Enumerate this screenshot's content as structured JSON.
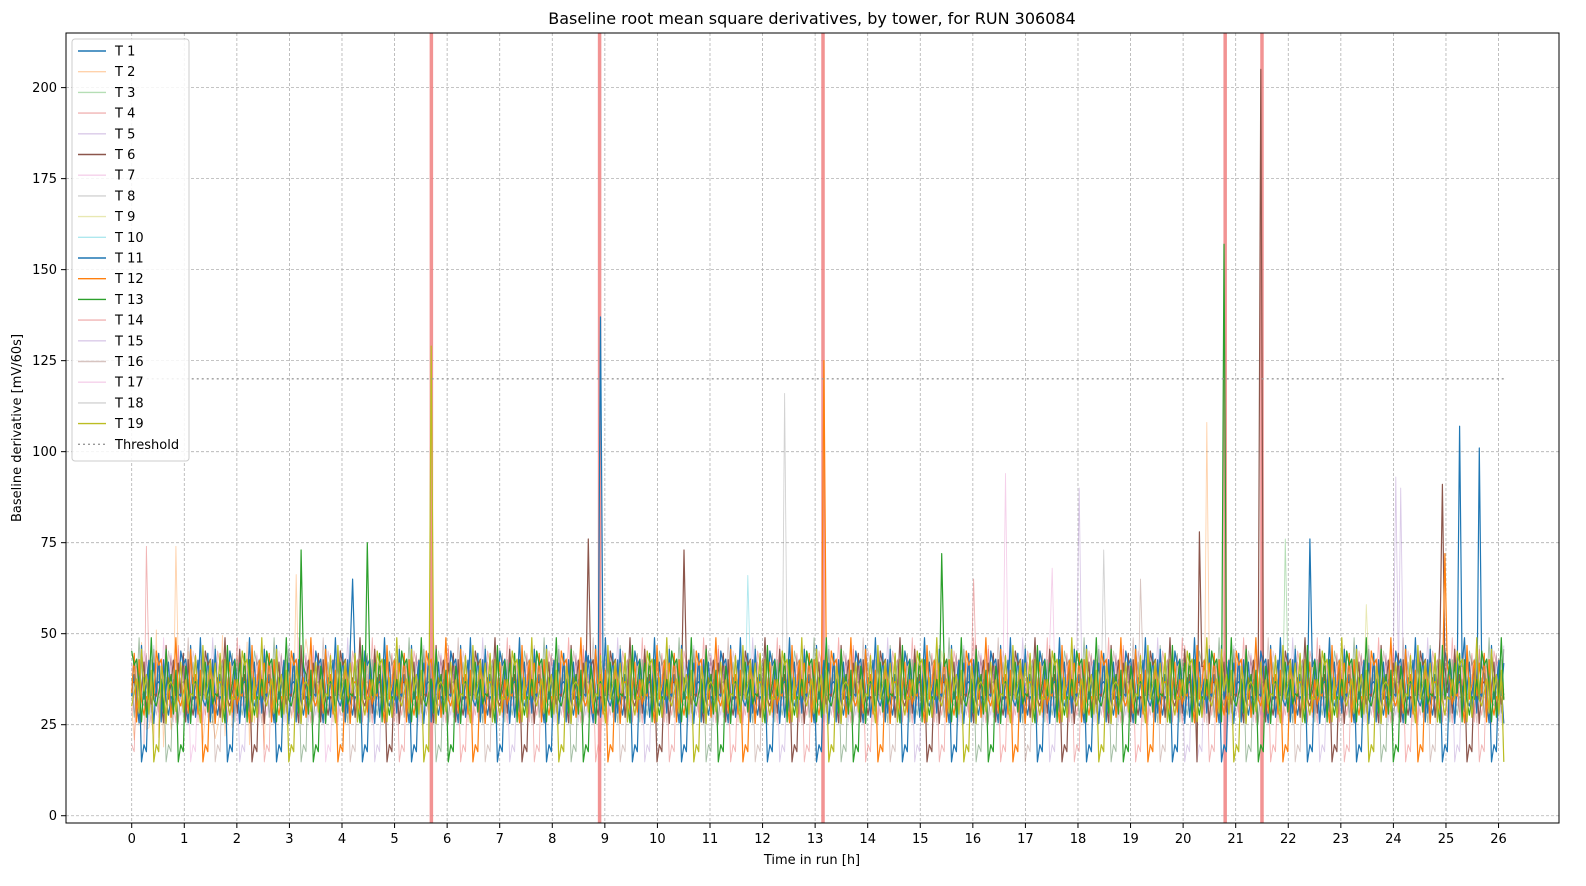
{
  "chart_data": {
    "type": "line",
    "title": "Baseline root mean square derivatives, by tower, for RUN 306084",
    "xlabel": "Time in run [h]",
    "ylabel": "Baseline derivative [mV/60s]",
    "xlim": [
      -1.25,
      27.15
    ],
    "ylim": [
      -2,
      215
    ],
    "x_ticks": [
      0,
      1,
      2,
      3,
      4,
      5,
      6,
      7,
      8,
      9,
      10,
      11,
      12,
      13,
      14,
      15,
      16,
      17,
      18,
      19,
      20,
      21,
      22,
      23,
      24,
      25,
      26
    ],
    "y_ticks": [
      0,
      25,
      50,
      75,
      100,
      125,
      150,
      175,
      200
    ],
    "grid": true,
    "legend_position": "top-left",
    "noise_band": {
      "x_start": 0,
      "x_end": 26.1,
      "y_low": 15,
      "y_high": 55
    },
    "series": [
      {
        "name": "T 1",
        "color": "#1f77b4",
        "alpha": 1.0,
        "spikes": [
          [
            8.9,
            137
          ],
          [
            25.25,
            107
          ],
          [
            25.62,
            101
          ],
          [
            22.4,
            76
          ]
        ]
      },
      {
        "name": "T 2",
        "color": "#ff7f0e",
        "alpha": 0.35,
        "spikes": [
          [
            20.45,
            108
          ],
          [
            0.85,
            74
          ]
        ]
      },
      {
        "name": "T 3",
        "color": "#2ca02c",
        "alpha": 0.35,
        "spikes": [
          [
            21.95,
            76
          ]
        ]
      },
      {
        "name": "T 4",
        "color": "#d62728",
        "alpha": 0.35,
        "spikes": [
          [
            0.3,
            74
          ]
        ]
      },
      {
        "name": "T 5",
        "color": "#9467bd",
        "alpha": 0.35,
        "spikes": [
          [
            24.05,
            93
          ]
        ]
      },
      {
        "name": "T 6",
        "color": "#8c564b",
        "alpha": 1.0,
        "spikes": [
          [
            21.5,
            205
          ],
          [
            24.95,
            91
          ],
          [
            20.3,
            78
          ],
          [
            8.7,
            76
          ],
          [
            10.5,
            73
          ]
        ]
      },
      {
        "name": "T 7",
        "color": "#e377c2",
        "alpha": 0.35,
        "spikes": [
          [
            16.6,
            94
          ]
        ]
      },
      {
        "name": "T 8",
        "color": "#7f7f7f",
        "alpha": 0.35,
        "spikes": [
          [
            12.4,
            116
          ]
        ]
      },
      {
        "name": "T 9",
        "color": "#bcbd22",
        "alpha": 0.35,
        "spikes": [
          [
            23.5,
            58
          ]
        ]
      },
      {
        "name": "T 10",
        "color": "#17becf",
        "alpha": 0.35,
        "spikes": [
          [
            11.7,
            66
          ]
        ]
      },
      {
        "name": "T 11",
        "color": "#1f77b4",
        "alpha": 1.0,
        "spikes": [
          [
            4.2,
            65
          ]
        ]
      },
      {
        "name": "T 12",
        "color": "#ff7f0e",
        "alpha": 1.0,
        "spikes": [
          [
            13.15,
            125
          ],
          [
            25.0,
            72
          ]
        ]
      },
      {
        "name": "T 13",
        "color": "#2ca02c",
        "alpha": 1.0,
        "spikes": [
          [
            20.8,
            157
          ],
          [
            3.2,
            73
          ],
          [
            4.5,
            75
          ],
          [
            15.4,
            72
          ]
        ]
      },
      {
        "name": "T 14",
        "color": "#d62728",
        "alpha": 0.35,
        "spikes": [
          [
            16.0,
            65
          ]
        ]
      },
      {
        "name": "T 15",
        "color": "#9467bd",
        "alpha": 0.35,
        "spikes": [
          [
            18.0,
            90
          ],
          [
            24.15,
            90
          ]
        ]
      },
      {
        "name": "T 16",
        "color": "#8c564b",
        "alpha": 0.35,
        "spikes": [
          [
            19.2,
            65
          ]
        ]
      },
      {
        "name": "T 17",
        "color": "#e377c2",
        "alpha": 0.35,
        "spikes": [
          [
            17.5,
            68
          ]
        ]
      },
      {
        "name": "T 18",
        "color": "#7f7f7f",
        "alpha": 0.35,
        "spikes": [
          [
            18.5,
            73
          ]
        ]
      },
      {
        "name": "T 19",
        "color": "#bcbd22",
        "alpha": 1.0,
        "spikes": [
          [
            5.7,
            129
          ]
        ]
      }
    ],
    "threshold": {
      "name": "Threshold",
      "value": 120,
      "x_start": 0,
      "x_end": 26.1,
      "color": "#999999"
    },
    "alert_lines": {
      "color": "#f08080",
      "x": [
        5.7,
        8.9,
        13.15,
        20.8,
        21.5
      ]
    }
  }
}
